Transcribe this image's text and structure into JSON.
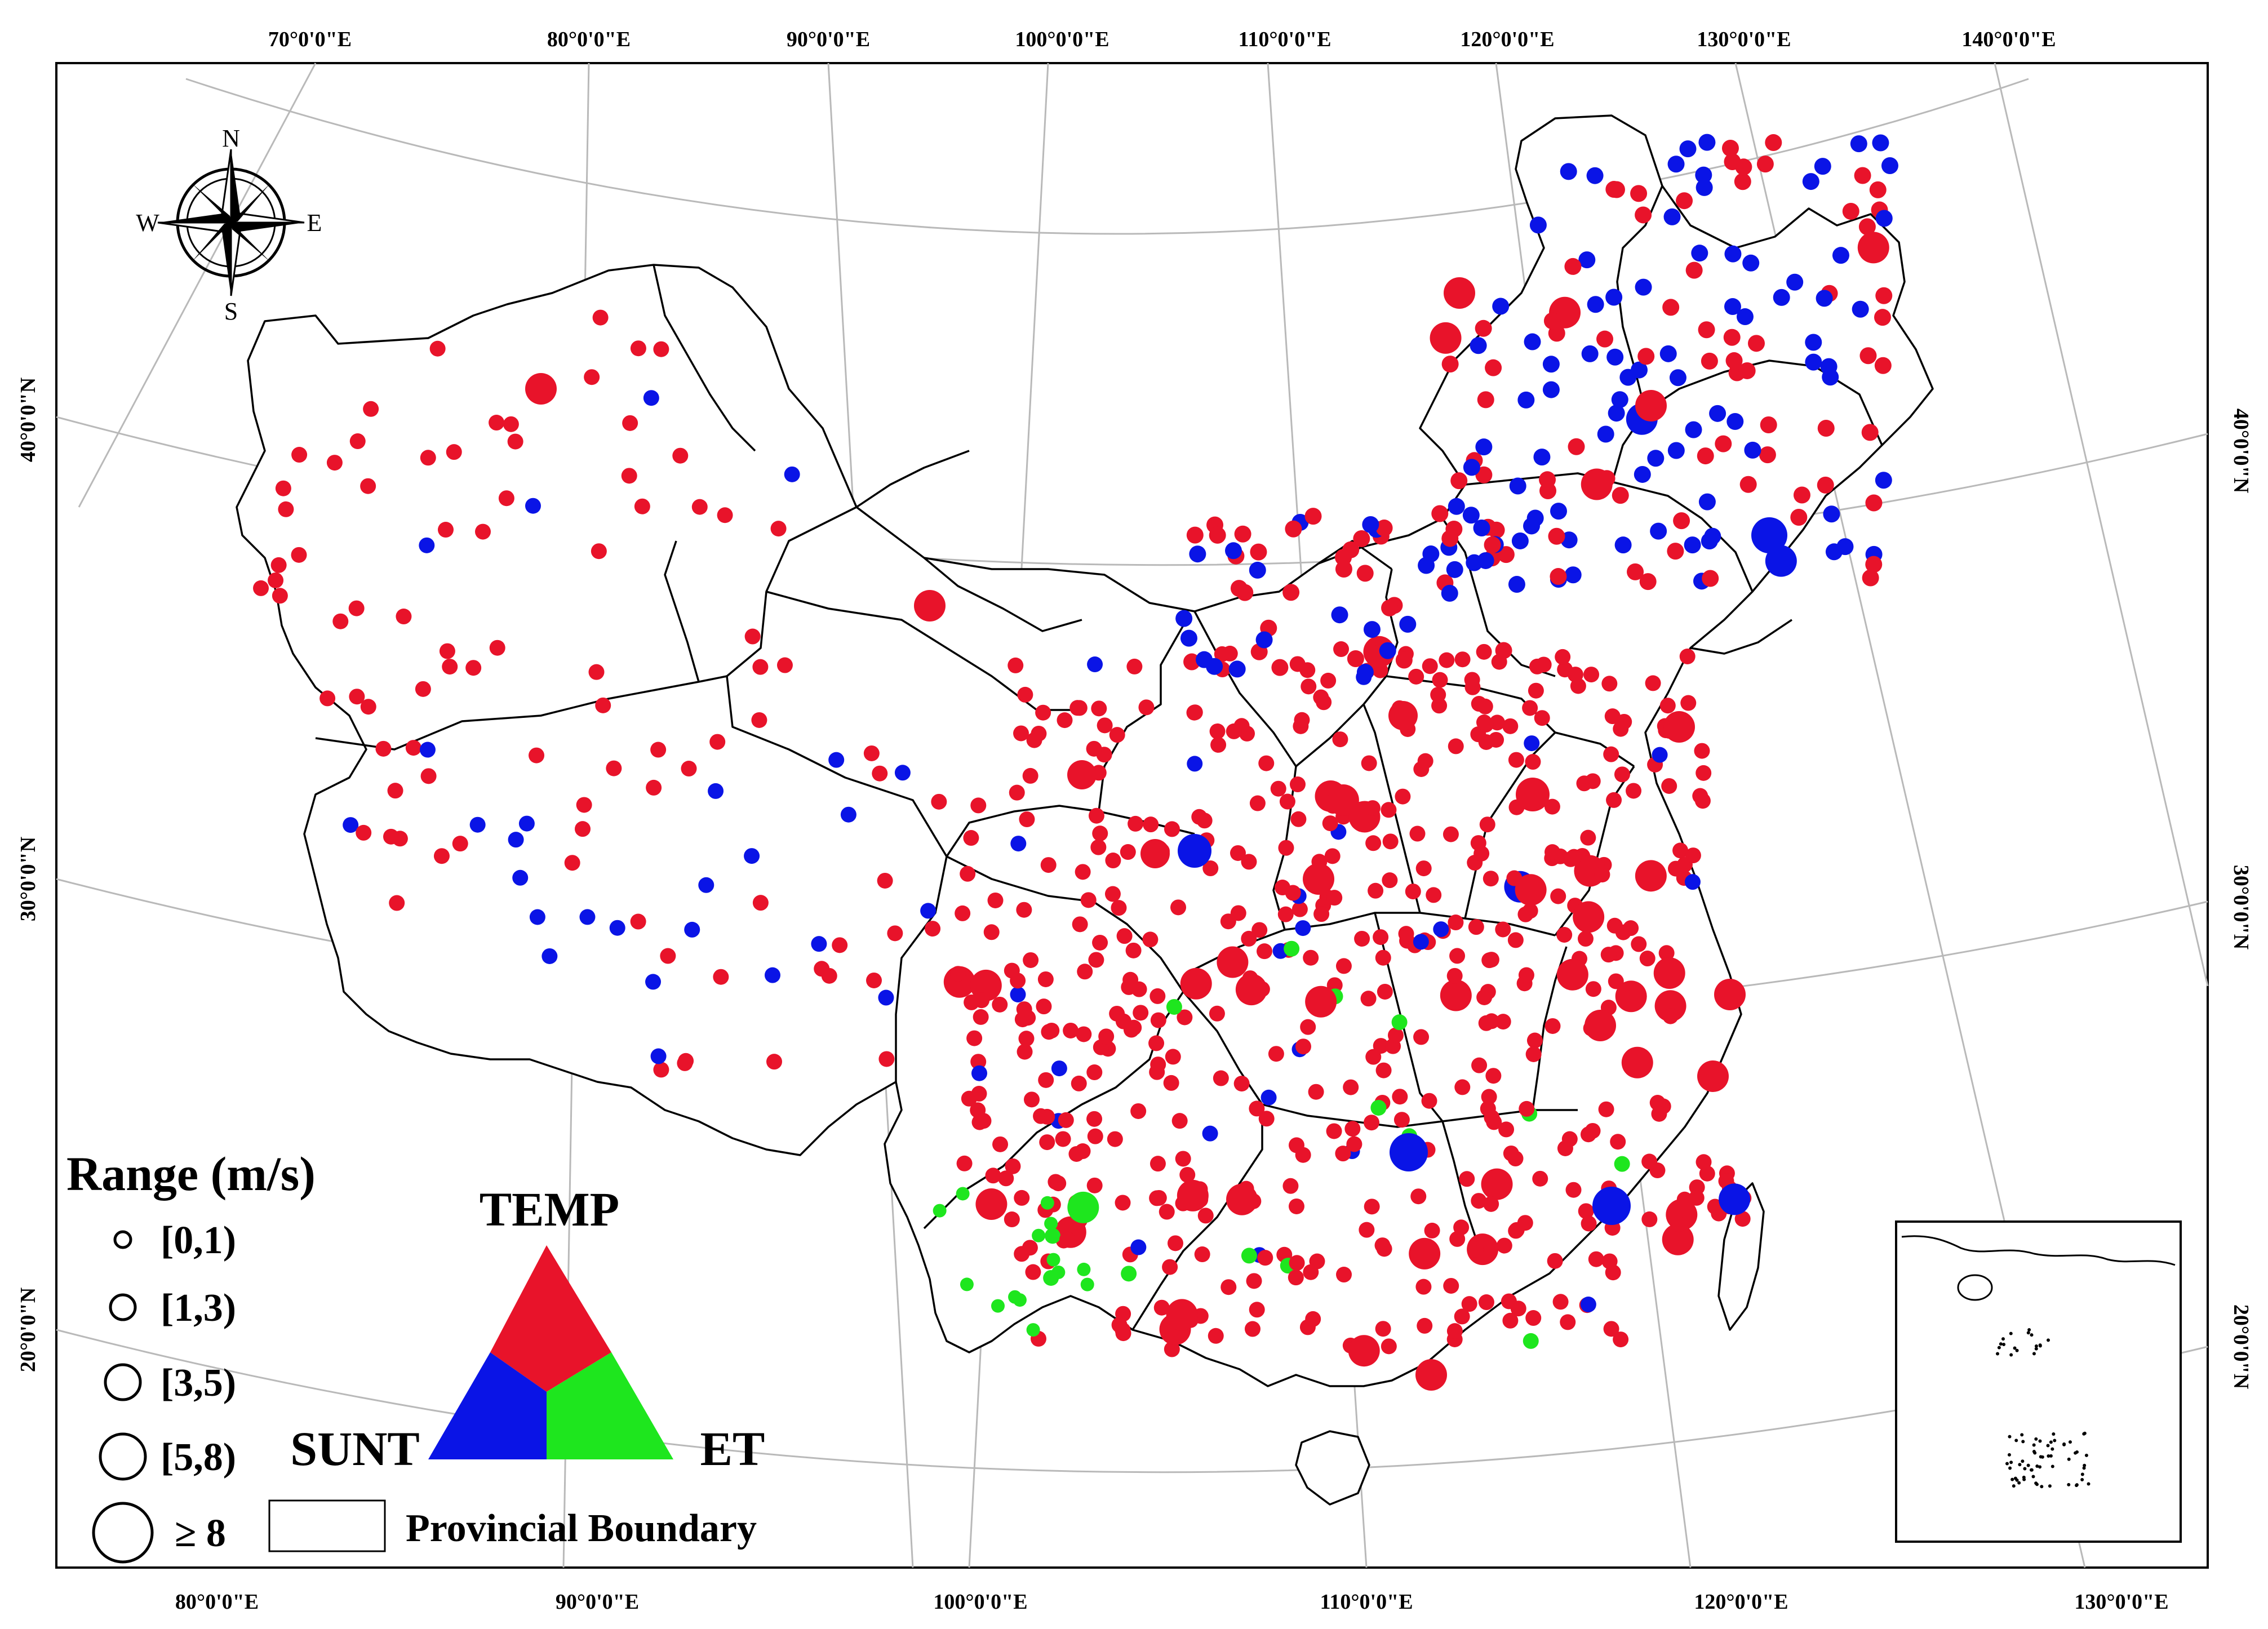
{
  "colors": {
    "temp": "#e8132a",
    "sunt": "#0a14e6",
    "et": "#1ee61e",
    "boundary": "#000000",
    "graticule": "#b4b4b4",
    "background": "#ffffff"
  },
  "top_axis_labels": [
    "70°0'0\"E",
    "80°0'0\"E",
    "90°0'0\"E",
    "100°0'0\"E",
    "110°0'0\"E",
    "120°0'0\"E",
    "130°0'0\"E",
    "140°0'0\"E"
  ],
  "bottom_axis_labels": [
    "80°0'0\"E",
    "90°0'0\"E",
    "100°0'0\"E",
    "110°0'0\"E",
    "120°0'0\"E",
    "130°0'0\"E"
  ],
  "left_axis_labels": [
    "40°0'0\"N",
    "30°0'0\"N",
    "20°0'0\"N"
  ],
  "right_axis_labels": [
    "40°0'0\"N",
    "30°0'0\"N",
    "20°0'0\"N"
  ],
  "compass": {
    "icon": "compass-rose-icon",
    "n": "N",
    "s": "S",
    "e": "E",
    "w": "W"
  },
  "legend": {
    "title": "Range (m/s)",
    "classes": [
      "[0,1)",
      "[1,3)",
      "[3,5)",
      "[5,8)",
      "≥ 8"
    ],
    "boundary_label": "Provincial Boundary"
  },
  "ternary": {
    "top": "TEMP",
    "left": "SUNT",
    "right": "ET"
  },
  "inset": {
    "description_icon": "south-china-sea-inset"
  },
  "station_counts_note": "stations colored by dominant factor (TEMP / SUNT / ET) and sized by range class"
}
